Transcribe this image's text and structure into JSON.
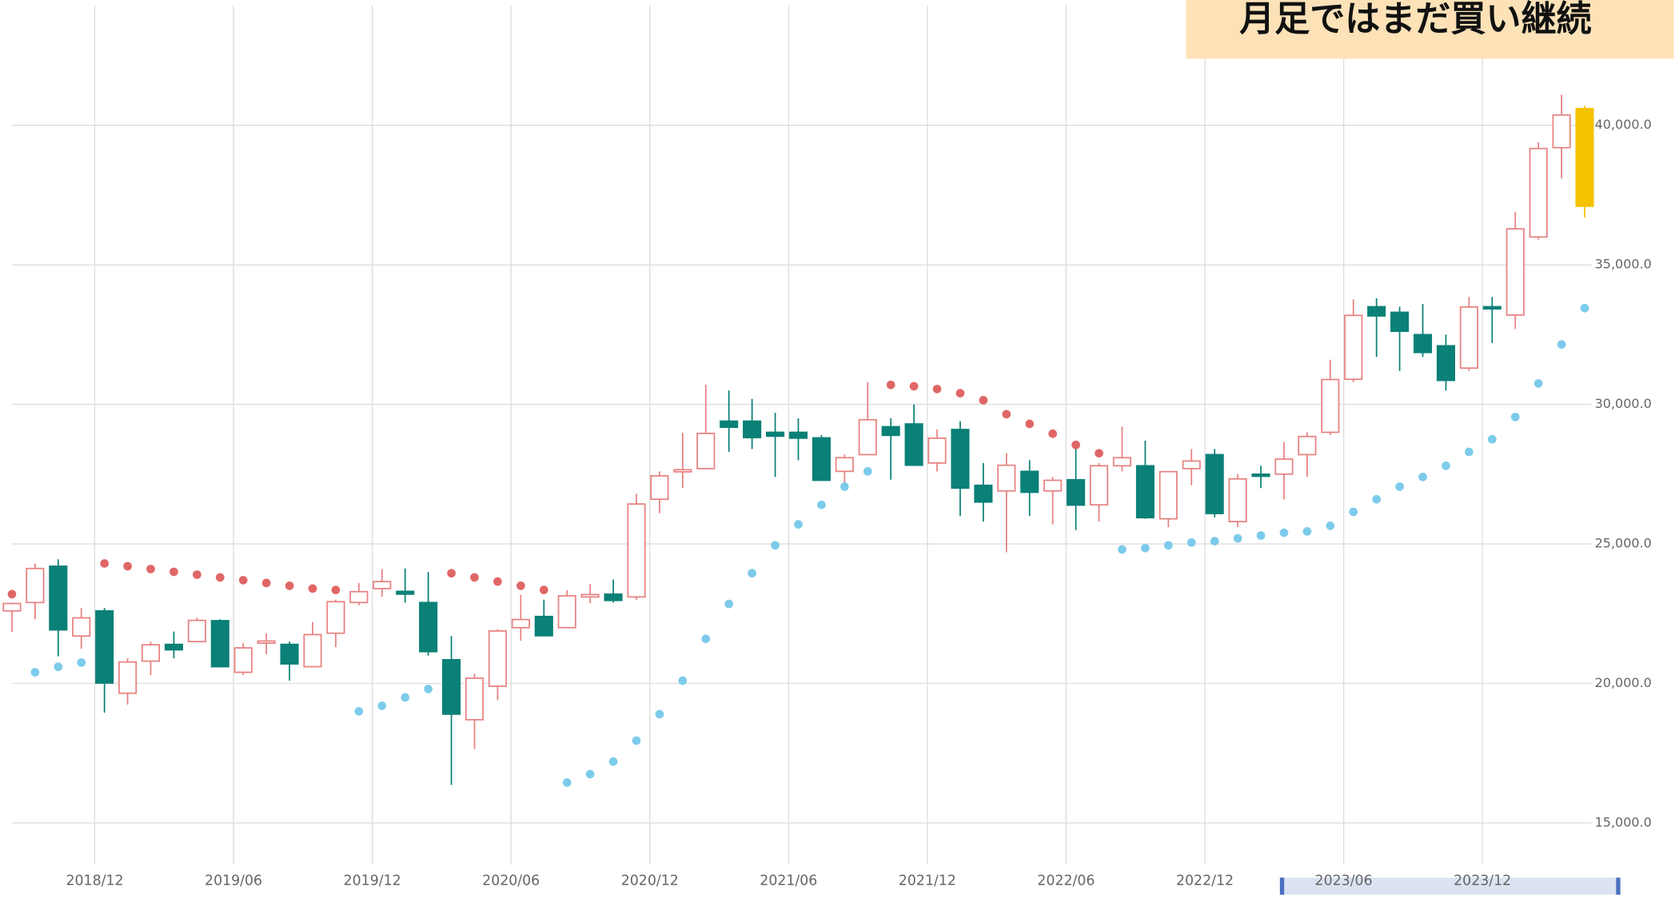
{
  "chart_data": {
    "type": "candlestick",
    "title": "月足ではまだ買い継続",
    "categories": [
      "2018/08",
      "2018/09",
      "2018/10",
      "2018/11",
      "2018/12",
      "2019/01",
      "2019/02",
      "2019/03",
      "2019/04",
      "2019/05",
      "2019/06",
      "2019/07",
      "2019/08",
      "2019/09",
      "2019/10",
      "2019/11",
      "2019/12",
      "2020/01",
      "2020/02",
      "2020/03",
      "2020/04",
      "2020/05",
      "2020/06",
      "2020/07",
      "2020/08",
      "2020/09",
      "2020/10",
      "2020/11",
      "2020/12",
      "2021/01",
      "2021/02",
      "2021/03",
      "2021/04",
      "2021/05",
      "2021/06",
      "2021/07",
      "2021/08",
      "2021/09",
      "2021/10",
      "2021/11",
      "2021/12",
      "2022/01",
      "2022/02",
      "2022/03",
      "2022/04",
      "2022/05",
      "2022/06",
      "2022/07",
      "2022/08",
      "2022/09",
      "2022/10",
      "2022/11",
      "2022/12",
      "2023/01",
      "2023/02",
      "2023/03",
      "2023/04",
      "2023/05",
      "2023/06",
      "2023/07",
      "2023/08",
      "2023/09",
      "2023/10",
      "2023/11",
      "2023/12",
      "2024/01",
      "2024/02",
      "2024/03",
      "2024/04"
    ],
    "open": [
      22600,
      22900,
      24200,
      21700,
      22600,
      19650,
      20800,
      21400,
      21500,
      22250,
      20400,
      21500,
      21400,
      20600,
      21800,
      22900,
      23400,
      23300,
      22900,
      20850,
      18700,
      19900,
      22000,
      22400,
      22000,
      23100,
      23200,
      23100,
      26600,
      27600,
      27700,
      29400,
      29400,
      29000,
      29000,
      28800,
      27600,
      28200,
      29200,
      29300,
      27900,
      29100,
      27100,
      26900,
      27600,
      26900,
      27300,
      26400,
      27800,
      27800,
      25900,
      27700,
      28200,
      25800,
      27500,
      27500,
      28200,
      29000,
      30900,
      33500,
      33300,
      32500,
      32100,
      31300,
      33500,
      33200,
      36000,
      39200,
      40600
    ],
    "high": [
      22900,
      24300,
      24450,
      22700,
      22700,
      20900,
      21500,
      21860,
      22360,
      22300,
      21450,
      21800,
      21500,
      22200,
      23000,
      23600,
      24100,
      24120,
      24000,
      21700,
      20350,
      21950,
      23180,
      23000,
      23340,
      23560,
      23725,
      26800,
      27600,
      28980,
      30700,
      30500,
      30200,
      29700,
      29500,
      28900,
      28200,
      30800,
      29500,
      30000,
      29100,
      29400,
      27900,
      28250,
      28000,
      27400,
      28400,
      27900,
      29200,
      28700,
      27600,
      28400,
      28400,
      27500,
      27800,
      28650,
      29000,
      31600,
      33770,
      33800,
      33500,
      33600,
      32500,
      33850,
      33850,
      36900,
      39400,
      41100,
      40700
    ],
    "low": [
      21850,
      22300,
      20970,
      21240,
      18950,
      19240,
      20300,
      20900,
      21500,
      20600,
      20300,
      21050,
      20100,
      20600,
      21300,
      22800,
      23100,
      22900,
      21000,
      16360,
      17650,
      19400,
      21530,
      21700,
      22000,
      22880,
      22900,
      23000,
      26100,
      27000,
      27700,
      28300,
      28400,
      27400,
      28000,
      27300,
      26950,
      28200,
      27300,
      27800,
      27600,
      26000,
      25800,
      24700,
      26000,
      25700,
      25500,
      25800,
      27600,
      25900,
      25600,
      27100,
      25950,
      25600,
      27000,
      26600,
      27400,
      28900,
      30800,
      31700,
      31200,
      31700,
      30500,
      31200,
      32200,
      32700,
      35900,
      38100,
      36700
    ],
    "close": [
      22865,
      24120,
      21920,
      22350,
      20015,
      20770,
      21385,
      21205,
      22260,
      20600,
      21275,
      21520,
      20700,
      21750,
      22930,
      23290,
      23650,
      23200,
      21140,
      18900,
      20190,
      21880,
      22290,
      21710,
      23140,
      23185,
      22975,
      26430,
      27440,
      27660,
      28960,
      29180,
      28810,
      28860,
      28790,
      27280,
      28090,
      29450,
      28890,
      27820,
      28790,
      27000,
      26500,
      27820,
      26850,
      27280,
      26390,
      27800,
      28090,
      25940,
      27590,
      27970,
      26090,
      27330,
      27450,
      28040,
      28850,
      30890,
      33190,
      33170,
      32620,
      31860,
      30860,
      33490,
      33460,
      36290,
      39170,
      40370,
      37100
    ],
    "sar": [
      23200,
      20400,
      20600,
      20750,
      24300,
      24200,
      24100,
      24000,
      23900,
      23800,
      23700,
      23600,
      23500,
      23400,
      23350,
      19000,
      19200,
      19500,
      19800,
      23950,
      23800,
      23650,
      23500,
      23350,
      16450,
      16750,
      17200,
      17950,
      18900,
      20100,
      21600,
      22850,
      23950,
      24950,
      25700,
      26400,
      27050,
      27600,
      30700,
      30650,
      30550,
      30400,
      30150,
      29650,
      29300,
      28950,
      28550,
      28250,
      24800,
      24850,
      24950,
      25050,
      25100,
      25200,
      25300,
      25400,
      25450,
      25650,
      26150,
      26600,
      27050,
      27400,
      27800,
      28300,
      28750,
      29550,
      30750,
      32150,
      33450
    ],
    "xticks": [
      "2018/12",
      "2019/06",
      "2019/12",
      "2020/06",
      "2020/12",
      "2021/06",
      "2021/12",
      "2022/06",
      "2022/12",
      "2023/06",
      "2023/12"
    ],
    "ylim": [
      13500,
      44300
    ],
    "yticks": [
      {
        "value": 15000,
        "label": "15,000.0"
      },
      {
        "value": 20000,
        "label": "20,000.0"
      },
      {
        "value": 25000,
        "label": "25,000.0"
      },
      {
        "value": 30000,
        "label": "30,000.0"
      },
      {
        "value": 35000,
        "label": "35,000.0"
      },
      {
        "value": 40000,
        "label": "40,000.0"
      }
    ],
    "grid": true,
    "up_color": "#e88080",
    "down_color": "#0a8077",
    "last_color": "#f5c200",
    "sar_above_color": "#e06666",
    "sar_below_color": "#7ccbea"
  }
}
